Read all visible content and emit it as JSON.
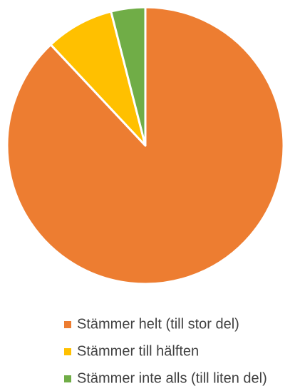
{
  "chart_data": {
    "type": "pie",
    "categories": [
      "Stämmer helt (till stor del)",
      "Stämmer till hälften",
      "Stämmer inte alls (till liten del)"
    ],
    "values": [
      88,
      8,
      4
    ],
    "colors": [
      "#ED7D31",
      "#FFC000",
      "#70AD47"
    ],
    "legend": "bottom"
  }
}
